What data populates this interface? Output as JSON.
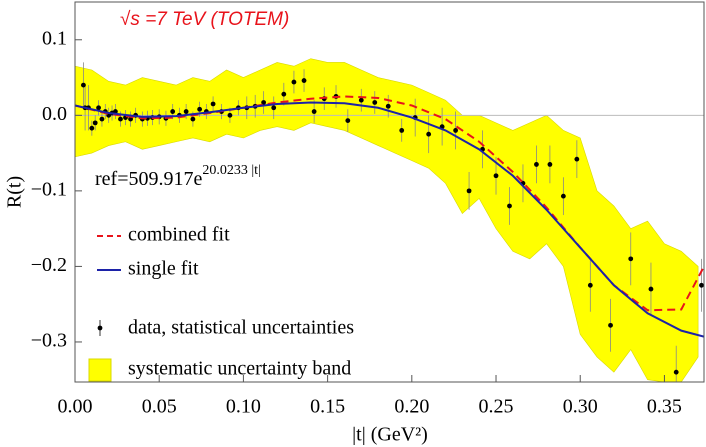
{
  "chart_data": {
    "type": "line",
    "title": "√s =7 TeV (TOTEM)",
    "title_color": "#e8131b",
    "annotation": {
      "base": "ref=509.917e",
      "exponent": "20.0233 |t|"
    },
    "xlabel": "|t| (GeV²)",
    "ylabel": "R(t)",
    "xlim": [
      0,
      0.3735
    ],
    "ylim": [
      -0.353,
      0.15
    ],
    "xticks": [
      {
        "value": 0,
        "label": "0.00"
      },
      {
        "value": 0.05,
        "label": "0.05"
      },
      {
        "value": 0.1,
        "label": "0.10"
      },
      {
        "value": 0.15,
        "label": "0.15"
      },
      {
        "value": 0.2,
        "label": "0.20"
      },
      {
        "value": 0.25,
        "label": "0.25"
      },
      {
        "value": 0.3,
        "label": "0.30"
      },
      {
        "value": 0.35,
        "label": "0.35"
      }
    ],
    "yticks": [
      {
        "value": -0.3,
        "label": "−0.3"
      },
      {
        "value": -0.2,
        "label": "−0.2"
      },
      {
        "value": -0.1,
        "label": "−0.1"
      },
      {
        "value": 0,
        "label": "0.0"
      },
      0.1
    ],
    "zero_line": true,
    "band": {
      "name": "systematic uncertainty band",
      "color": "#ffff00",
      "x": [
        0,
        0.01,
        0.02,
        0.03,
        0.04,
        0.05,
        0.06,
        0.07,
        0.08,
        0.09,
        0.1,
        0.11,
        0.12,
        0.13,
        0.14,
        0.15,
        0.16,
        0.17,
        0.18,
        0.19,
        0.2,
        0.21,
        0.22,
        0.23,
        0.24,
        0.25,
        0.26,
        0.27,
        0.28,
        0.29,
        0.3,
        0.31,
        0.32,
        0.33,
        0.34,
        0.35,
        0.36,
        0.37
      ],
      "upper": [
        0.065,
        0.06,
        0.045,
        0.04,
        0.05,
        0.045,
        0.04,
        0.05,
        0.045,
        0.06,
        0.05,
        0.06,
        0.07,
        0.065,
        0.075,
        0.07,
        0.07,
        0.06,
        0.05,
        0.045,
        0.04,
        0.03,
        0.02,
        0.0,
        0.0,
        -0.01,
        -0.02,
        -0.01,
        0.0,
        -0.02,
        -0.03,
        -0.1,
        -0.12,
        -0.15,
        -0.14,
        -0.17,
        -0.18,
        -0.2
      ],
      "lower": [
        -0.055,
        -0.05,
        -0.04,
        -0.035,
        -0.045,
        -0.04,
        -0.035,
        -0.03,
        -0.035,
        -0.025,
        -0.03,
        -0.02,
        -0.015,
        -0.02,
        -0.01,
        -0.015,
        -0.02,
        -0.03,
        -0.04,
        -0.05,
        -0.06,
        -0.07,
        -0.09,
        -0.13,
        -0.11,
        -0.15,
        -0.18,
        -0.19,
        -0.17,
        -0.2,
        -0.29,
        -0.32,
        -0.34,
        -0.31,
        -0.35,
        -0.353,
        -0.353,
        -0.32
      ]
    },
    "series": [
      {
        "name": "combined fit",
        "color": "#e8131b",
        "dashed": true,
        "x": [
          0,
          0.02,
          0.04,
          0.06,
          0.08,
          0.1,
          0.12,
          0.14,
          0.16,
          0.18,
          0.2,
          0.22,
          0.24,
          0.26,
          0.28,
          0.3,
          0.32,
          0.34,
          0.36,
          0.3735
        ],
        "values": [
          0.013,
          0.002,
          -0.004,
          -0.003,
          0.003,
          0.01,
          0.017,
          0.022,
          0.025,
          0.023,
          0.013,
          -0.005,
          -0.035,
          -0.075,
          -0.122,
          -0.175,
          -0.225,
          -0.258,
          -0.257,
          -0.2
        ]
      },
      {
        "name": "single fit",
        "color": "#1c22a8",
        "dashed": false,
        "x": [
          0,
          0.02,
          0.04,
          0.06,
          0.08,
          0.1,
          0.12,
          0.14,
          0.16,
          0.18,
          0.2,
          0.22,
          0.24,
          0.26,
          0.28,
          0.3,
          0.32,
          0.34,
          0.36,
          0.3735
        ],
        "values": [
          0.013,
          0.003,
          -0.002,
          -0.001,
          0.004,
          0.01,
          0.015,
          0.017,
          0.016,
          0.01,
          -0.003,
          -0.02,
          -0.045,
          -0.08,
          -0.125,
          -0.175,
          -0.225,
          -0.262,
          -0.285,
          -0.293
        ]
      }
    ],
    "points": {
      "name": "data, statistical uncertainties",
      "color": "#000000",
      "x": [
        0.005,
        0.006,
        0.008,
        0.01,
        0.012,
        0.014,
        0.016,
        0.018,
        0.02,
        0.022,
        0.024,
        0.027,
        0.03,
        0.033,
        0.036,
        0.04,
        0.043,
        0.046,
        0.05,
        0.054,
        0.058,
        0.062,
        0.066,
        0.07,
        0.074,
        0.078,
        0.082,
        0.087,
        0.092,
        0.097,
        0.102,
        0.107,
        0.112,
        0.118,
        0.124,
        0.13,
        0.136,
        0.142,
        0.148,
        0.155,
        0.162,
        0.17,
        0.178,
        0.186,
        0.194,
        0.202,
        0.21,
        0.218,
        0.226,
        0.234,
        0.242,
        0.25,
        0.258,
        0.266,
        0.274,
        0.282,
        0.29,
        0.298,
        0.306,
        0.318,
        0.33,
        0.342,
        0.357,
        0.372
      ],
      "values": [
        0.04,
        0.01,
        0.01,
        -0.017,
        -0.01,
        0.01,
        -0.005,
        0.005,
        0.0,
        0.003,
        0.005,
        -0.005,
        -0.003,
        -0.005,
        0.0,
        -0.005,
        -0.004,
        -0.003,
        -0.002,
        -0.004,
        0.005,
        0.0,
        0.005,
        -0.005,
        0.008,
        0.005,
        0.015,
        0.005,
        0.0,
        0.01,
        0.01,
        0.012,
        0.017,
        0.01,
        0.028,
        0.044,
        0.046,
        0.005,
        0.022,
        0.025,
        -0.007,
        0.02,
        0.017,
        0.012,
        -0.02,
        -0.003,
        -0.025,
        -0.015,
        -0.02,
        -0.1,
        -0.045,
        -0.08,
        -0.12,
        -0.09,
        -0.065,
        -0.065,
        -0.107,
        -0.058,
        -0.225,
        -0.278,
        -0.19,
        -0.23,
        -0.34,
        -0.225
      ],
      "errors": [
        0.03,
        0.03,
        0.03,
        0.01,
        0.01,
        0.01,
        0.01,
        0.01,
        0.01,
        0.01,
        0.01,
        0.01,
        0.01,
        0.01,
        0.01,
        0.01,
        0.01,
        0.01,
        0.01,
        0.01,
        0.01,
        0.01,
        0.01,
        0.01,
        0.01,
        0.01,
        0.01,
        0.01,
        0.01,
        0.01,
        0.015,
        0.015,
        0.015,
        0.015,
        0.015,
        0.015,
        0.015,
        0.015,
        0.015,
        0.015,
        0.015,
        0.015,
        0.015,
        0.015,
        0.015,
        0.025,
        0.025,
        0.025,
        0.025,
        0.025,
        0.025,
        0.025,
        0.025,
        0.025,
        0.025,
        0.025,
        0.025,
        0.025,
        0.035,
        0.035,
        0.035,
        0.035,
        0.035,
        0.035
      ]
    }
  }
}
